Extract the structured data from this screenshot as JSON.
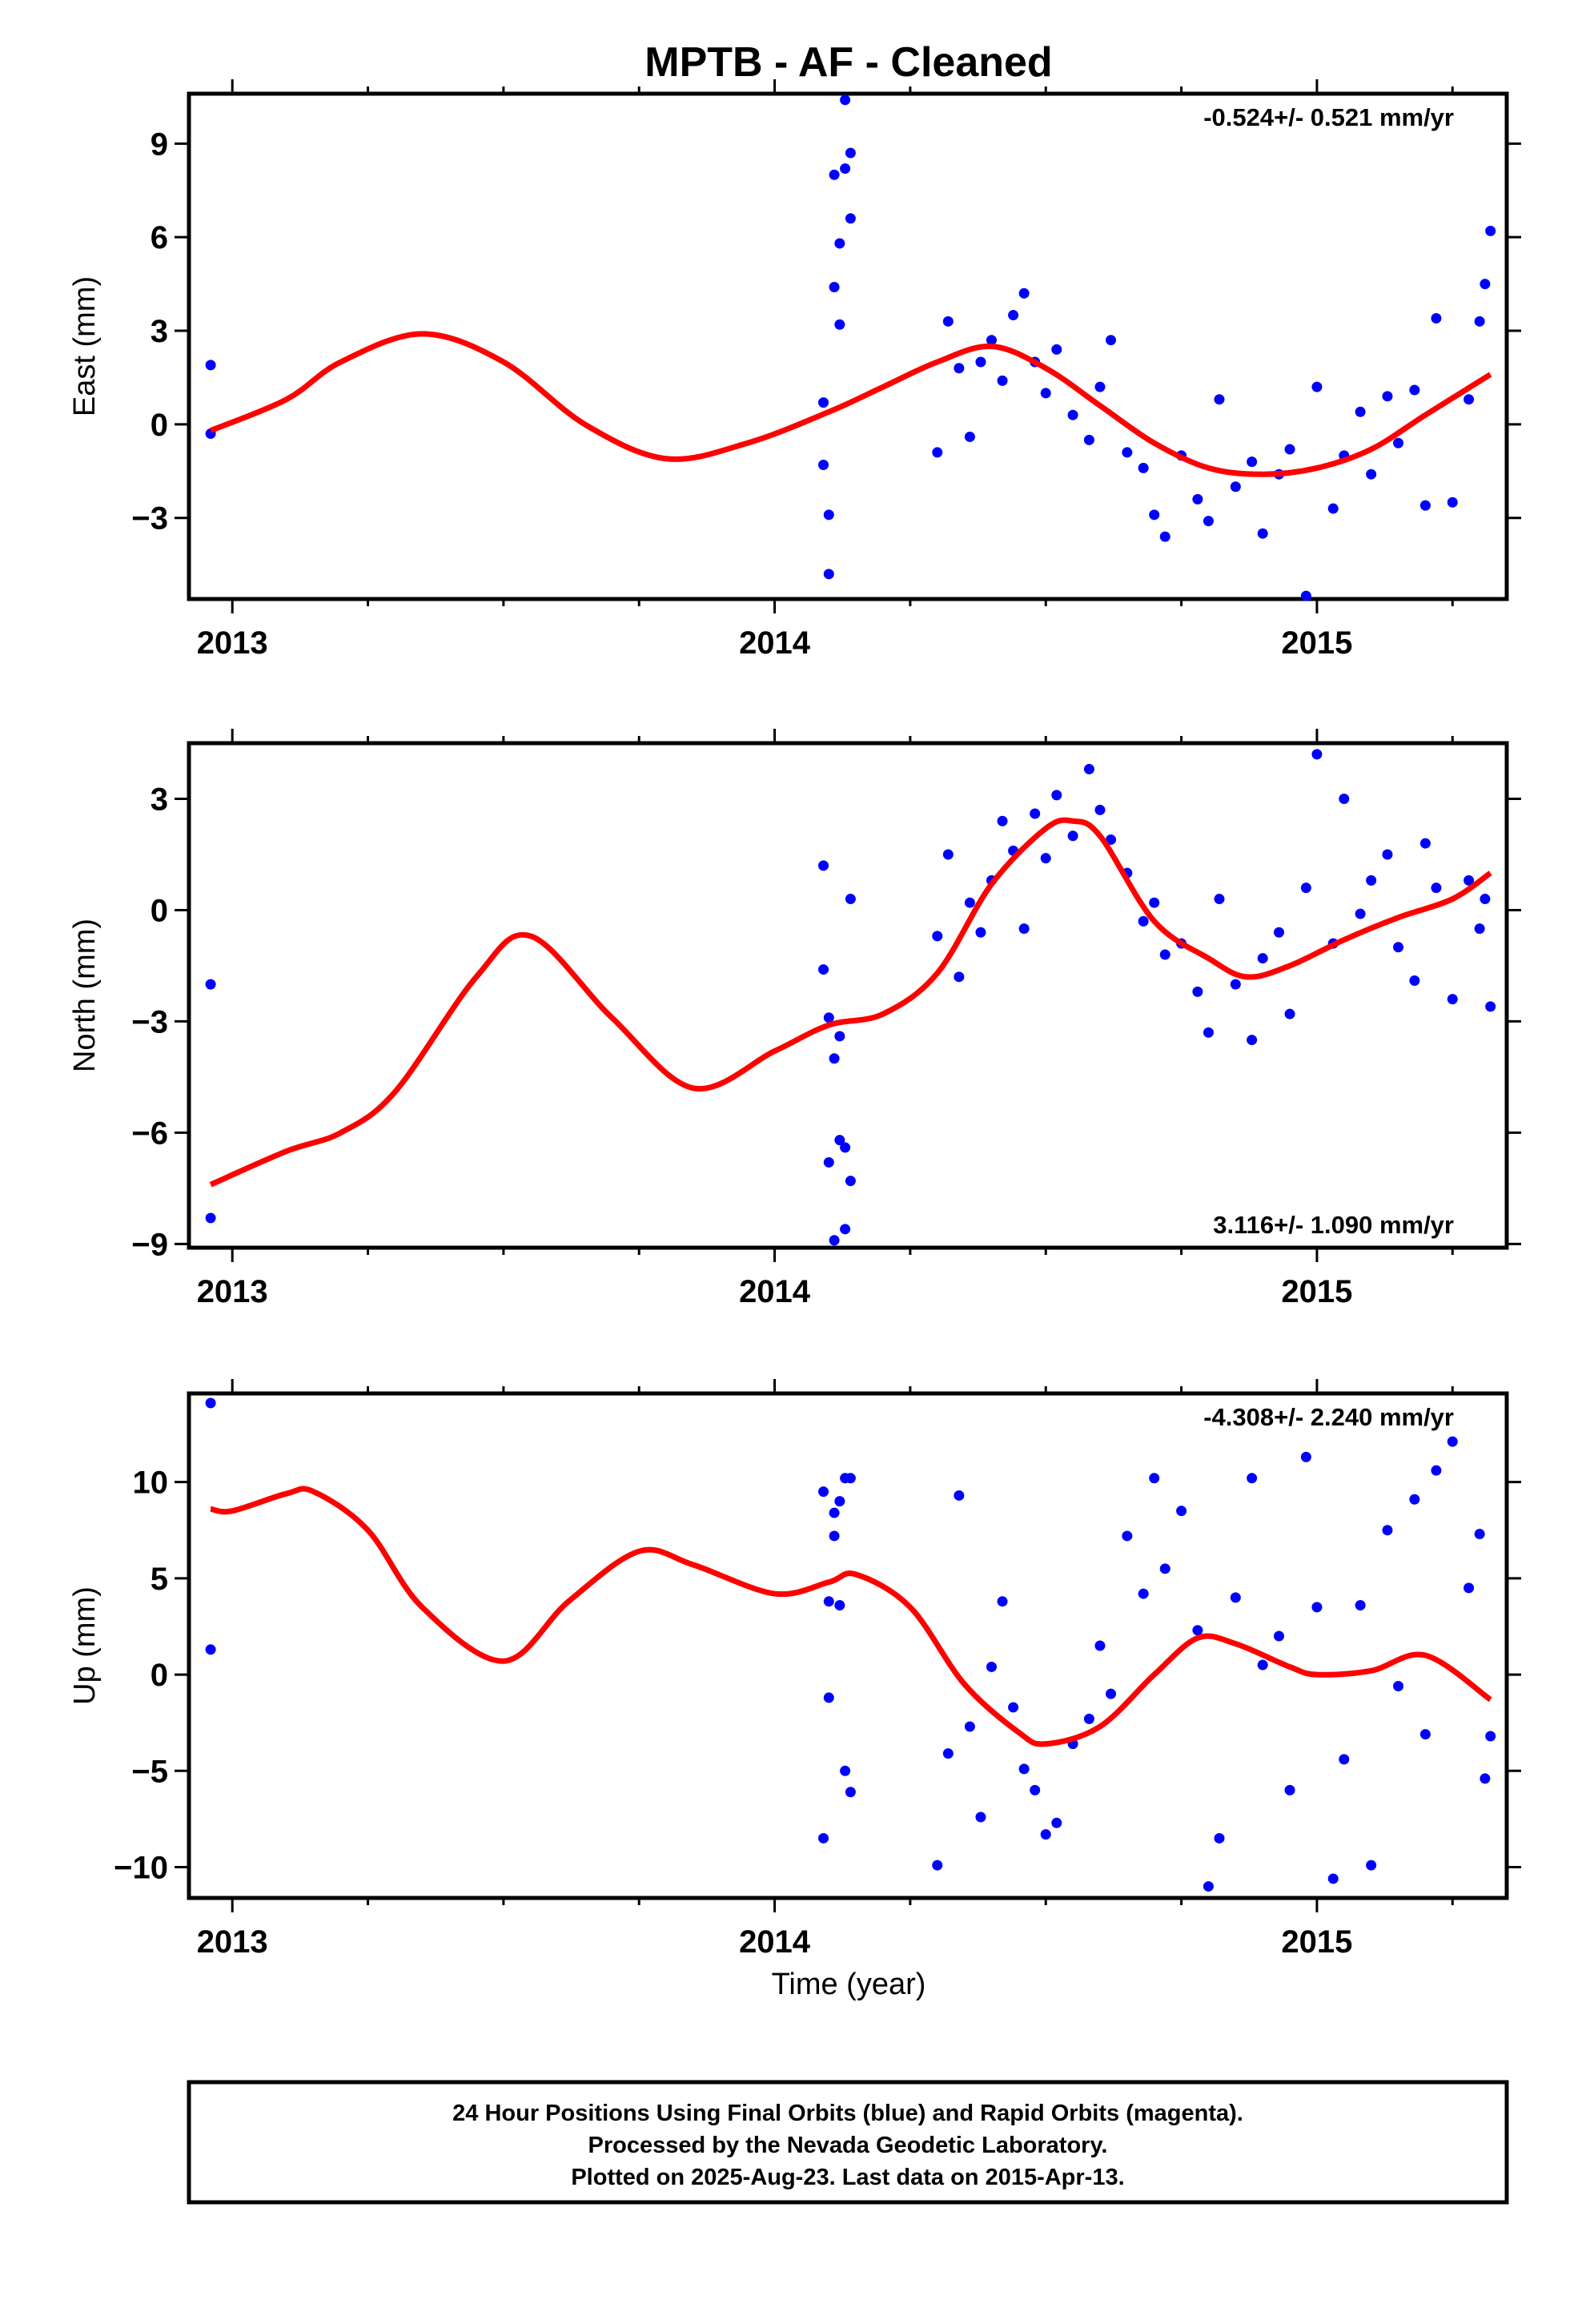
{
  "title": "MPTB  - AF - Cleaned",
  "xlabel": "Time (year)",
  "footer": {
    "line1": "24 Hour Positions Using Final Orbits (blue) and Rapid Orbits (magenta).",
    "line2": "Processed by the Nevada Geodetic Laboratory.",
    "line3": "Plotted on 2025-Aug-23. Last data on 2015-Apr-13."
  },
  "colors": {
    "points": "#0000ff",
    "fit": "#ff0000",
    "axes": "#000000"
  },
  "chart_data": [
    {
      "type": "scatter",
      "ylabel": "East (mm)",
      "rate_text": "-0.524+/- 0.521 mm/yr",
      "rate_position": "top-right",
      "xlim": [
        2012.92,
        2015.35
      ],
      "ylim": [
        -5.6,
        10.6
      ],
      "xticks": [
        2013,
        2014,
        2015
      ],
      "yticks": [
        -3,
        0,
        3,
        6,
        9
      ],
      "ytick_labels": [
        "−3",
        "0",
        "3",
        "6",
        "9"
      ],
      "series": [
        {
          "kind": "points",
          "x": [
            2012.96,
            2012.96,
            2014.09,
            2014.09,
            2014.1,
            2014.1,
            2014.11,
            2014.11,
            2014.12,
            2014.12,
            2014.13,
            2014.13,
            2014.14,
            2014.14,
            2014.3,
            2014.32,
            2014.34,
            2014.36,
            2014.38,
            2014.4,
            2014.42,
            2014.44,
            2014.46,
            2014.48,
            2014.5,
            2014.52,
            2014.55,
            2014.58,
            2014.6,
            2014.62,
            2014.65,
            2014.68,
            2014.7,
            2014.72,
            2014.75,
            2014.78,
            2014.8,
            2014.82,
            2014.85,
            2014.88,
            2014.9,
            2014.93,
            2014.95,
            2014.98,
            2015.0,
            2015.03,
            2015.05,
            2015.08,
            2015.1,
            2015.13,
            2015.15,
            2015.18,
            2015.2,
            2015.22,
            2015.25,
            2015.28,
            2015.3,
            2015.31,
            2015.32
          ],
          "y": [
            1.9,
            -0.3,
            0.7,
            -1.3,
            -2.9,
            -4.8,
            4.4,
            8.0,
            5.8,
            3.2,
            8.2,
            10.4,
            6.6,
            8.7,
            -0.9,
            3.3,
            1.8,
            -0.4,
            2.0,
            2.7,
            1.4,
            3.5,
            4.2,
            2.0,
            1.0,
            2.4,
            0.3,
            -0.5,
            1.2,
            2.7,
            -0.9,
            -1.4,
            -2.9,
            -3.6,
            -1.0,
            -2.4,
            -3.1,
            0.8,
            -2.0,
            -1.2,
            -3.5,
            -1.6,
            -0.8,
            -5.5,
            1.2,
            -2.7,
            -1.0,
            0.4,
            -1.6,
            0.9,
            -0.6,
            1.1,
            -2.6,
            3.4,
            -2.5,
            0.8,
            3.3,
            4.5,
            6.2
          ]
        },
        {
          "kind": "fit",
          "x": [
            2012.96,
            2013.1,
            2013.2,
            2013.35,
            2013.5,
            2013.65,
            2013.8,
            2013.95,
            2014.1,
            2014.2,
            2014.3,
            2014.4,
            2014.5,
            2014.6,
            2014.7,
            2014.8,
            2014.9,
            2015.0,
            2015.1,
            2015.2,
            2015.32
          ],
          "y": [
            -0.2,
            0.8,
            2.0,
            2.9,
            2.0,
            0.0,
            -1.1,
            -0.6,
            0.4,
            1.2,
            2.0,
            2.5,
            1.8,
            0.6,
            -0.6,
            -1.4,
            -1.6,
            -1.4,
            -0.8,
            0.3,
            1.6
          ]
        }
      ]
    },
    {
      "type": "scatter",
      "ylabel": "North (mm)",
      "rate_text": "3.116+/- 1.090 mm/yr",
      "rate_position": "bottom-right",
      "xlim": [
        2012.92,
        2015.35
      ],
      "ylim": [
        -9.1,
        4.5
      ],
      "xticks": [
        2013,
        2014,
        2015
      ],
      "yticks": [
        -9,
        -6,
        -3,
        0,
        3
      ],
      "ytick_labels": [
        "−9",
        "−6",
        "−3",
        "0",
        "3"
      ],
      "series": [
        {
          "kind": "points",
          "x": [
            2012.96,
            2012.96,
            2014.09,
            2014.09,
            2014.1,
            2014.1,
            2014.11,
            2014.11,
            2014.12,
            2014.12,
            2014.13,
            2014.13,
            2014.14,
            2014.14,
            2014.3,
            2014.32,
            2014.34,
            2014.36,
            2014.38,
            2014.4,
            2014.42,
            2014.44,
            2014.46,
            2014.48,
            2014.5,
            2014.52,
            2014.55,
            2014.58,
            2014.6,
            2014.62,
            2014.65,
            2014.68,
            2014.7,
            2014.72,
            2014.75,
            2014.78,
            2014.8,
            2014.82,
            2014.85,
            2014.88,
            2014.9,
            2014.93,
            2014.95,
            2014.98,
            2015.0,
            2015.03,
            2015.05,
            2015.08,
            2015.1,
            2015.13,
            2015.15,
            2015.18,
            2015.2,
            2015.22,
            2015.25,
            2015.28,
            2015.3,
            2015.31,
            2015.32
          ],
          "y": [
            -2.0,
            -8.3,
            1.2,
            -1.6,
            -2.9,
            -6.8,
            -4.0,
            -8.9,
            -6.2,
            -3.4,
            -6.4,
            -8.6,
            -7.3,
            0.3,
            -0.7,
            1.5,
            -1.8,
            0.2,
            -0.6,
            0.8,
            2.4,
            1.6,
            -0.5,
            2.6,
            1.4,
            3.1,
            2.0,
            3.8,
            2.7,
            1.9,
            1.0,
            -0.3,
            0.2,
            -1.2,
            -0.9,
            -2.2,
            -3.3,
            0.3,
            -2.0,
            -3.5,
            -1.3,
            -0.6,
            -2.8,
            0.6,
            4.2,
            -0.9,
            3.0,
            -0.1,
            0.8,
            1.5,
            -1.0,
            -1.9,
            1.8,
            0.6,
            -2.4,
            0.8,
            -0.5,
            0.3,
            -2.6
          ]
        },
        {
          "kind": "fit",
          "x": [
            2012.96,
            2013.1,
            2013.2,
            2013.3,
            2013.45,
            2013.55,
            2013.7,
            2013.85,
            2014.0,
            2014.1,
            2014.2,
            2014.3,
            2014.4,
            2014.5,
            2014.55,
            2014.6,
            2014.7,
            2014.8,
            2014.87,
            2014.95,
            2015.05,
            2015.15,
            2015.25,
            2015.32
          ],
          "y": [
            -7.4,
            -6.5,
            -6.0,
            -4.9,
            -1.8,
            -0.7,
            -2.9,
            -4.8,
            -3.8,
            -3.1,
            -2.8,
            -1.7,
            0.7,
            2.2,
            2.4,
            2.0,
            -0.3,
            -1.3,
            -1.8,
            -1.5,
            -0.8,
            -0.2,
            0.3,
            1.0
          ]
        }
      ]
    },
    {
      "type": "scatter",
      "ylabel": "Up (mm)",
      "rate_text": "-4.308+/- 2.240 mm/yr",
      "rate_position": "top-right",
      "xlim": [
        2012.92,
        2015.35
      ],
      "ylim": [
        -11.6,
        14.6
      ],
      "xticks": [
        2013,
        2014,
        2015
      ],
      "yticks": [
        -10,
        -5,
        0,
        5,
        10
      ],
      "ytick_labels": [
        "−10",
        "−5",
        "0",
        "5",
        "10"
      ],
      "series": [
        {
          "kind": "points",
          "x": [
            2012.96,
            2012.96,
            2014.09,
            2014.09,
            2014.1,
            2014.1,
            2014.11,
            2014.11,
            2014.12,
            2014.12,
            2014.13,
            2014.13,
            2014.14,
            2014.14,
            2014.3,
            2014.32,
            2014.34,
            2014.36,
            2014.38,
            2014.4,
            2014.42,
            2014.44,
            2014.46,
            2014.48,
            2014.5,
            2014.52,
            2014.55,
            2014.58,
            2014.6,
            2014.62,
            2014.65,
            2014.68,
            2014.7,
            2014.72,
            2014.75,
            2014.78,
            2014.8,
            2014.82,
            2014.85,
            2014.88,
            2014.9,
            2014.93,
            2014.95,
            2014.98,
            2015.0,
            2015.03,
            2015.05,
            2015.08,
            2015.1,
            2015.13,
            2015.15,
            2015.18,
            2015.2,
            2015.22,
            2015.25,
            2015.28,
            2015.3,
            2015.31,
            2015.32
          ],
          "y": [
            14.1,
            1.3,
            -8.5,
            9.5,
            3.8,
            -1.2,
            8.4,
            7.2,
            3.6,
            9.0,
            10.2,
            -5.0,
            -6.1,
            10.2,
            -9.9,
            -4.1,
            9.3,
            -2.7,
            -7.4,
            0.4,
            3.8,
            -1.7,
            -4.9,
            -6.0,
            -8.3,
            -7.7,
            -3.6,
            -2.3,
            1.5,
            -1.0,
            7.2,
            4.2,
            10.2,
            5.5,
            8.5,
            2.3,
            -11.0,
            -8.5,
            4.0,
            10.2,
            0.5,
            2.0,
            -6.0,
            11.3,
            3.5,
            -10.6,
            -4.4,
            3.6,
            -9.9,
            7.5,
            -0.6,
            9.1,
            -3.1,
            10.6,
            12.1,
            4.5,
            7.3,
            -5.4,
            -3.2
          ]
        },
        {
          "kind": "fit",
          "x": [
            2012.96,
            2013.0,
            2013.1,
            2013.15,
            2013.25,
            2013.35,
            2013.5,
            2013.62,
            2013.75,
            2013.85,
            2014.0,
            2014.1,
            2014.15,
            2014.25,
            2014.35,
            2014.45,
            2014.5,
            2014.6,
            2014.7,
            2014.78,
            2014.85,
            2014.95,
            2015.0,
            2015.1,
            2015.2,
            2015.32
          ],
          "y": [
            8.6,
            8.5,
            9.4,
            9.5,
            7.5,
            3.5,
            0.7,
            3.8,
            6.4,
            5.7,
            4.2,
            4.8,
            5.2,
            3.5,
            -0.5,
            -3.0,
            -3.6,
            -2.7,
            0.0,
            1.9,
            1.6,
            0.4,
            0.0,
            0.2,
            1.0,
            -1.3
          ]
        }
      ]
    }
  ]
}
